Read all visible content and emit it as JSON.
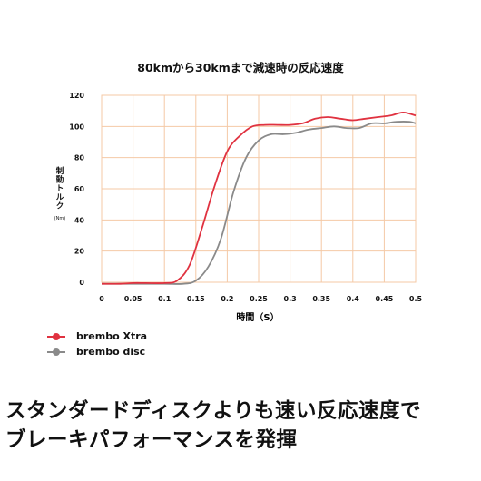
{
  "chart_data": {
    "type": "line",
    "title": "80kmから30kmまで減速時の反応速度",
    "xlabel": "時間（S）",
    "ylabel_chars": [
      "制",
      "動",
      "ト",
      "ル",
      "ク"
    ],
    "ylabel_unit": "(Nm)",
    "xlim": [
      0,
      0.5
    ],
    "ylim": [
      0,
      120
    ],
    "xticks": [
      0,
      0.05,
      0.1,
      0.15,
      0.2,
      0.25,
      0.3,
      0.35,
      0.4,
      0.45,
      0.5
    ],
    "xtick_labels": [
      "0",
      "0.05",
      "0.1",
      "0.15",
      "0.2",
      "0.25",
      "0.3",
      "0.35",
      "0.4",
      "0.45",
      "0.5"
    ],
    "yticks": [
      0,
      20,
      40,
      60,
      80,
      100,
      120
    ],
    "ytick_labels": [
      "0",
      "20",
      "40",
      "60",
      "80",
      "100",
      "120"
    ],
    "grid": true,
    "legend_position": "bottom-left",
    "series": [
      {
        "name": "brembo Xtra",
        "color": "#e03240",
        "x": [
          0,
          0.03,
          0.05,
          0.07,
          0.1,
          0.12,
          0.14,
          0.16,
          0.18,
          0.2,
          0.22,
          0.24,
          0.26,
          0.28,
          0.3,
          0.32,
          0.34,
          0.36,
          0.38,
          0.4,
          0.42,
          0.44,
          0.46,
          0.48,
          0.5
        ],
        "y": [
          -1,
          -1,
          -0.5,
          -0.5,
          -0.5,
          1,
          11,
          35,
          62,
          84,
          94,
          100,
          101,
          101,
          101,
          102,
          105,
          106,
          105,
          104,
          105,
          106,
          107,
          109,
          107
        ]
      },
      {
        "name": "brembo disc",
        "color": "#8a8a8a",
        "x": [
          0,
          0.05,
          0.1,
          0.13,
          0.15,
          0.17,
          0.19,
          0.21,
          0.23,
          0.25,
          0.27,
          0.29,
          0.31,
          0.33,
          0.35,
          0.37,
          0.39,
          0.41,
          0.43,
          0.45,
          0.47,
          0.49,
          0.5
        ],
        "y": [
          -1,
          -1,
          -1,
          -1,
          1,
          10,
          28,
          58,
          80,
          91,
          95,
          95,
          96,
          98,
          99,
          100,
          99,
          99,
          102,
          102,
          103,
          103,
          102
        ]
      }
    ]
  },
  "caption": {
    "line1": "スタンダードディスクよりも速い反応速度で",
    "line2": "ブレーキパフォーマンスを発揮"
  }
}
